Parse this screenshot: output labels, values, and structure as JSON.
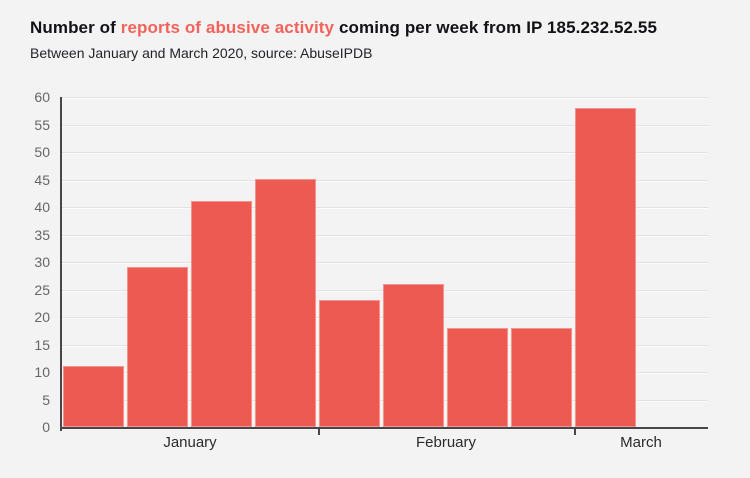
{
  "header": {
    "title_part1": "Number of ",
    "title_highlight": "reports of abusive activity",
    "title_part2": " coming per week from IP 185.232.52.55",
    "subtitle": "Between January and March 2020, source: AbuseIPDB"
  },
  "chart_data": {
    "type": "bar",
    "title": "Number of reports of abusive activity coming per week from IP 185.232.52.55",
    "subtitle": "Between January and March 2020, source: AbuseIPDB",
    "unit": "reports of abusive activity per week",
    "values": [
      11,
      29,
      41,
      45,
      23,
      26,
      18,
      18,
      58
    ],
    "months": [
      {
        "label": "January",
        "weeks": 4
      },
      {
        "label": "February",
        "weeks": 4
      },
      {
        "label": "March",
        "weeks": 1
      }
    ],
    "ylim": [
      0,
      60
    ],
    "yticks": [
      0,
      5,
      10,
      15,
      20,
      25,
      30,
      35,
      40,
      45,
      50,
      55,
      60
    ],
    "grid": true,
    "legend": false,
    "colors": {
      "bar": "#ed5a52",
      "title_highlight": "#f2635c",
      "axis": "#47474a",
      "gridline": "#e1e1e1",
      "ytick_label": "#666666",
      "month_label": "#2b2b2b",
      "title_text": "#121217",
      "background": "#f2f3f2"
    }
  }
}
